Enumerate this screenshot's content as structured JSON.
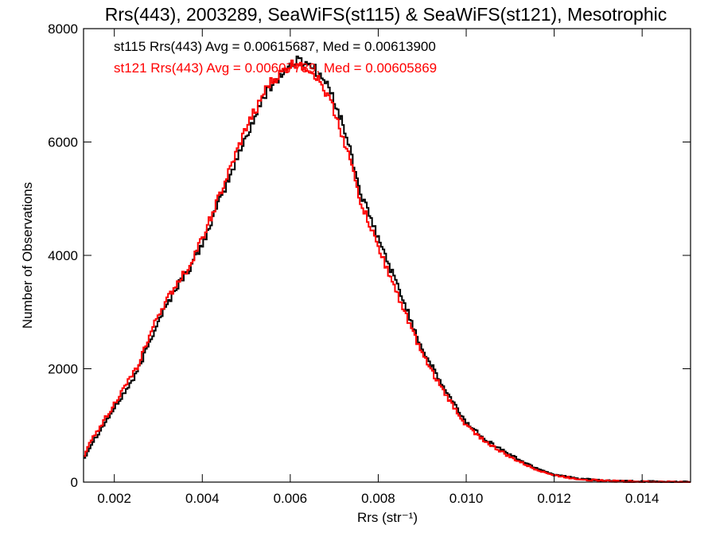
{
  "chart_data": {
    "type": "line",
    "title": "Rrs(443), 2003289, SeaWiFS(st115) & SeaWiFS(st121), Mesotrophic",
    "xlabel": "Rrs (str⁻¹)",
    "ylabel": "Number of Observations",
    "xlim": [
      0.0013,
      0.0151
    ],
    "ylim": [
      0,
      8000
    ],
    "xticks": [
      0.002,
      0.004,
      0.006,
      0.008,
      0.01,
      0.012,
      0.014
    ],
    "xtick_labels": [
      "0.002",
      "0.004",
      "0.006",
      "0.008",
      "0.010",
      "0.012",
      "0.014"
    ],
    "yticks": [
      0,
      2000,
      4000,
      6000,
      8000
    ],
    "ytick_labels": [
      "0",
      "2000",
      "4000",
      "6000",
      "8000"
    ],
    "grid": false,
    "step": true,
    "annotations": [
      {
        "text": "st115 Rrs(443) Avg = 0.00615687, Med = 0.00613900",
        "color": "#000000"
      },
      {
        "text": "st121 Rrs(443) Avg = 0.00607739, Med = 0.00605869",
        "color": "#ff0000"
      }
    ],
    "series": [
      {
        "color": "#000000",
        "x": [
          0.0013,
          0.0015,
          0.002,
          0.0025,
          0.003,
          0.0035,
          0.0037,
          0.004,
          0.0045,
          0.005,
          0.0055,
          0.006,
          0.0062,
          0.0065,
          0.0068,
          0.007,
          0.0073,
          0.0076,
          0.008,
          0.0085,
          0.009,
          0.0095,
          0.01,
          0.0105,
          0.011,
          0.0115,
          0.012,
          0.0125,
          0.013,
          0.0135,
          0.014,
          0.0145,
          0.0151
        ],
        "y": [
          400,
          700,
          1300,
          1900,
          2850,
          3550,
          3750,
          4200,
          5150,
          6100,
          6950,
          7350,
          7450,
          7350,
          7050,
          6750,
          6050,
          5100,
          4300,
          3350,
          2350,
          1650,
          1050,
          720,
          480,
          280,
          130,
          65,
          30,
          15,
          8,
          4,
          2
        ]
      },
      {
        "color": "#ff0000",
        "x": [
          0.0013,
          0.0015,
          0.002,
          0.0025,
          0.003,
          0.0035,
          0.0037,
          0.004,
          0.0045,
          0.005,
          0.0055,
          0.006,
          0.0062,
          0.0065,
          0.0068,
          0.007,
          0.0073,
          0.0076,
          0.008,
          0.0085,
          0.009,
          0.0095,
          0.01,
          0.0105,
          0.011,
          0.0115,
          0.012,
          0.0125,
          0.013,
          0.0135,
          0.014,
          0.0145,
          0.0151
        ],
        "y": [
          450,
          760,
          1380,
          2000,
          2950,
          3600,
          3800,
          4300,
          5250,
          6250,
          7000,
          7350,
          7400,
          7250,
          6900,
          6550,
          5850,
          4950,
          4150,
          3200,
          2250,
          1580,
          1000,
          680,
          440,
          250,
          120,
          60,
          28,
          14,
          7,
          3,
          2
        ]
      }
    ]
  }
}
